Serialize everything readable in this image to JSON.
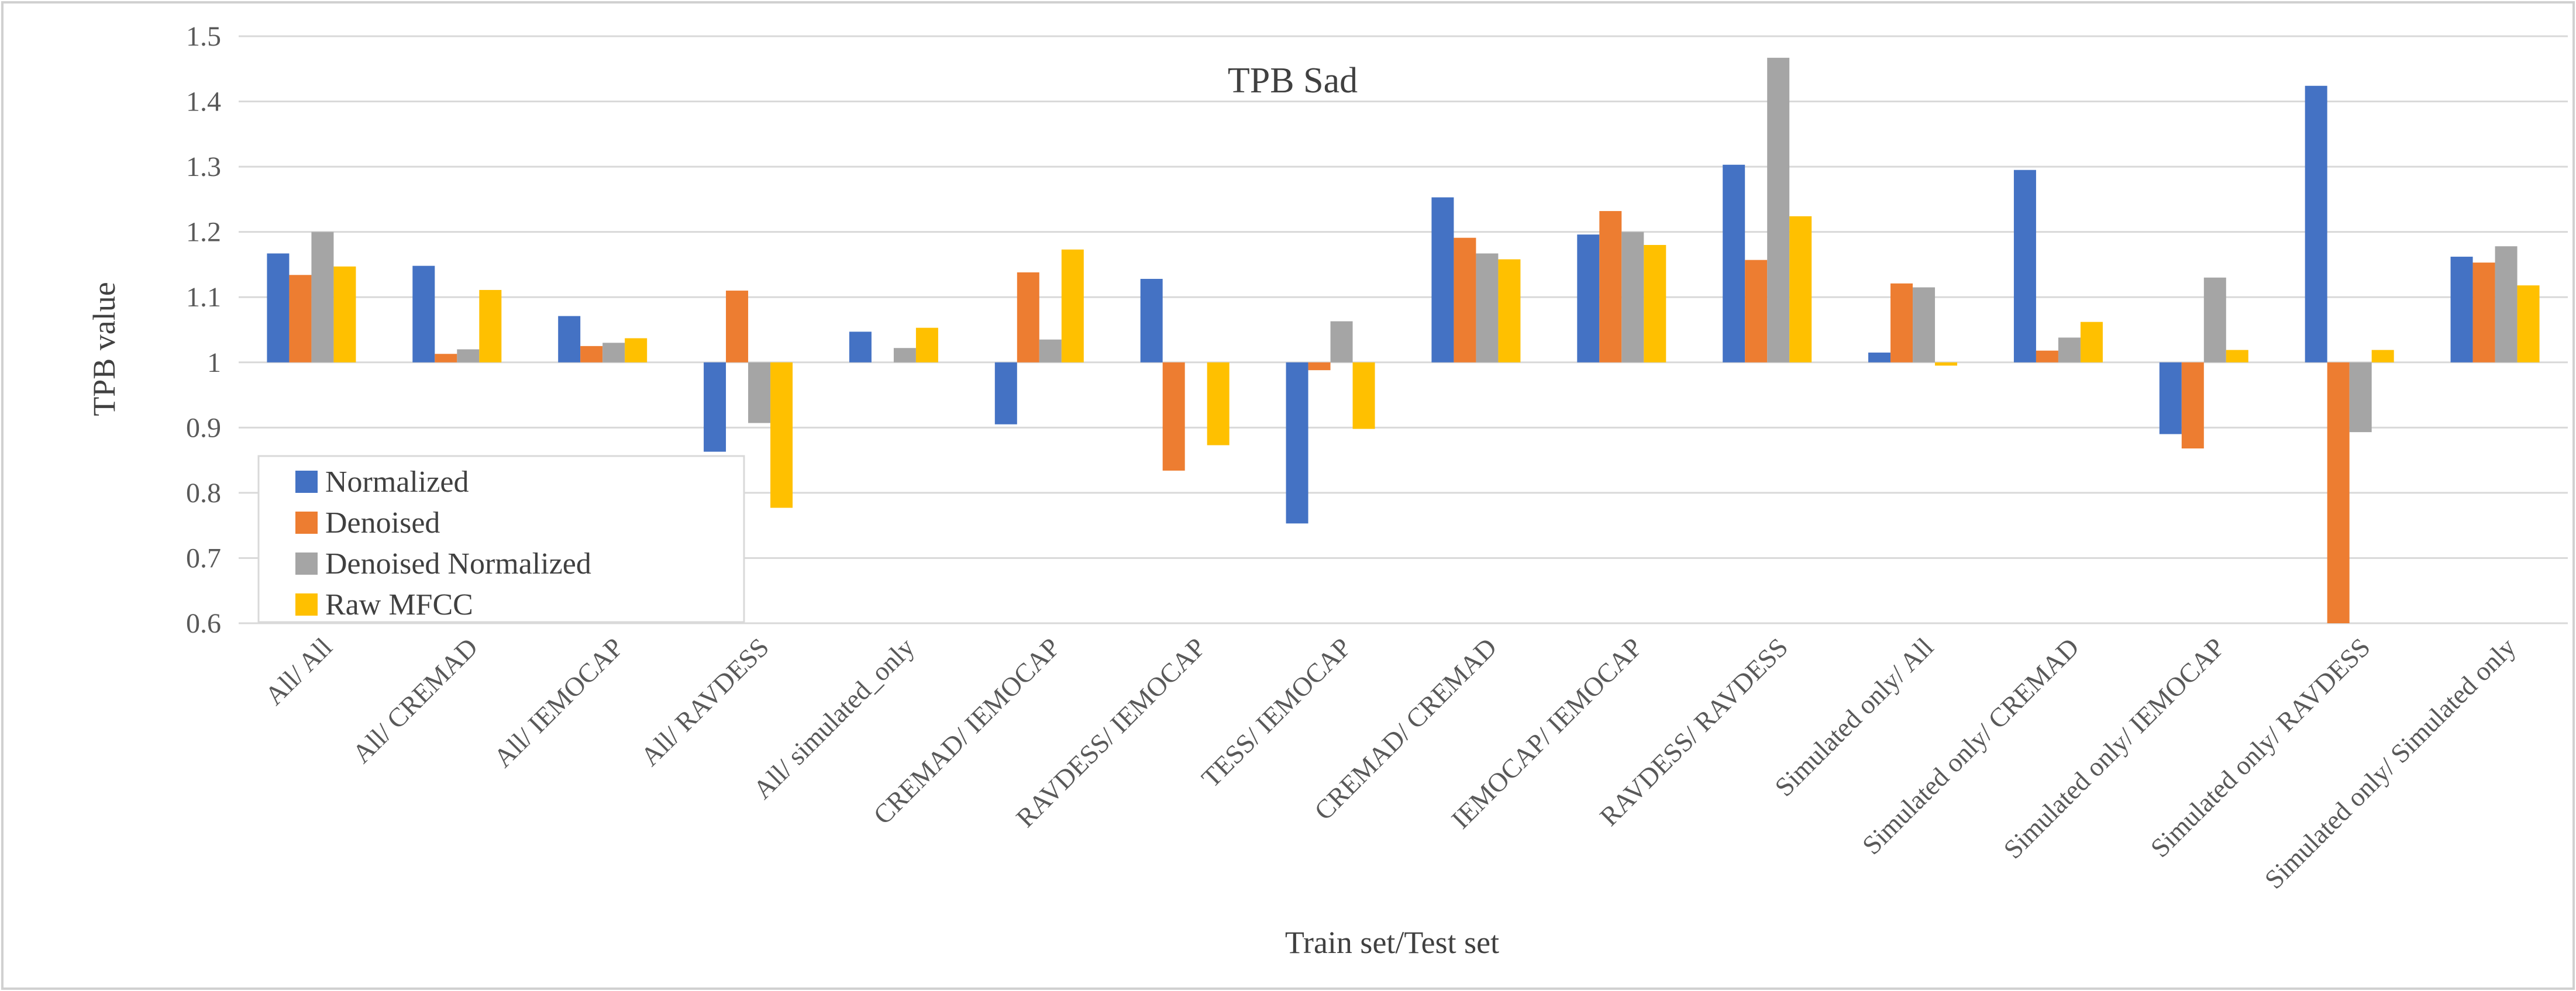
{
  "chart_data": {
    "type": "bar",
    "title": "TPB Sad",
    "xlabel": "Train set/Test set",
    "ylabel": "TPB value",
    "ylim": [
      0.6,
      1.5
    ],
    "baseline": 1.0,
    "yticks": [
      "0.6",
      "0.7",
      "0.8",
      "0.9",
      "1",
      "1.1",
      "1.2",
      "1.3",
      "1.4",
      "1.5"
    ],
    "grid": true,
    "legend_position": "left",
    "categories": [
      "All/ All",
      "All/ CREMAD",
      "All/ IEMOCAP",
      "All/ RAVDESS",
      "All/ simulated_only",
      "CREMAD/ IEMOCAP",
      "RAVDESS/ IEMOCAP",
      "TESS/ IEMOCAP",
      "CREMAD/ CREMAD",
      "IEMOCAP/ IEMOCAP",
      "RAVDESS/ RAVDESS",
      "Simulated only/ All",
      "Simulated only/ CREMAD",
      "Simulated only/ IEMOCAP",
      "Simulated only/ RAVDESS",
      "Simulated only/ Simulated only"
    ],
    "series": [
      {
        "name": "Normalized",
        "color": "#4472C4",
        "values": [
          1.167,
          1.148,
          1.071,
          0.863,
          1.047,
          0.905,
          1.128,
          0.753,
          1.253,
          1.196,
          1.303,
          1.015,
          1.295,
          0.89,
          1.424,
          1.162
        ]
      },
      {
        "name": "Denoised",
        "color": "#ED7D31",
        "values": [
          1.134,
          1.013,
          1.025,
          1.11,
          1.0,
          1.138,
          0.834,
          0.988,
          1.191,
          1.232,
          1.157,
          1.121,
          1.018,
          0.868,
          0.6,
          1.153
        ]
      },
      {
        "name": "Denoised Normalized",
        "color": "#A5A5A5",
        "values": [
          1.2,
          1.02,
          1.03,
          0.907,
          1.022,
          1.035,
          1.0,
          1.063,
          1.167,
          1.2,
          1.467,
          1.115,
          1.038,
          1.13,
          0.893,
          1.178
        ]
      },
      {
        "name": "Raw MFCC",
        "color": "#FFC000",
        "values": [
          1.147,
          1.111,
          1.037,
          0.777,
          1.053,
          1.173,
          0.873,
          0.898,
          1.158,
          1.18,
          1.224,
          0.995,
          1.062,
          1.019,
          1.019,
          1.118
        ]
      }
    ]
  }
}
